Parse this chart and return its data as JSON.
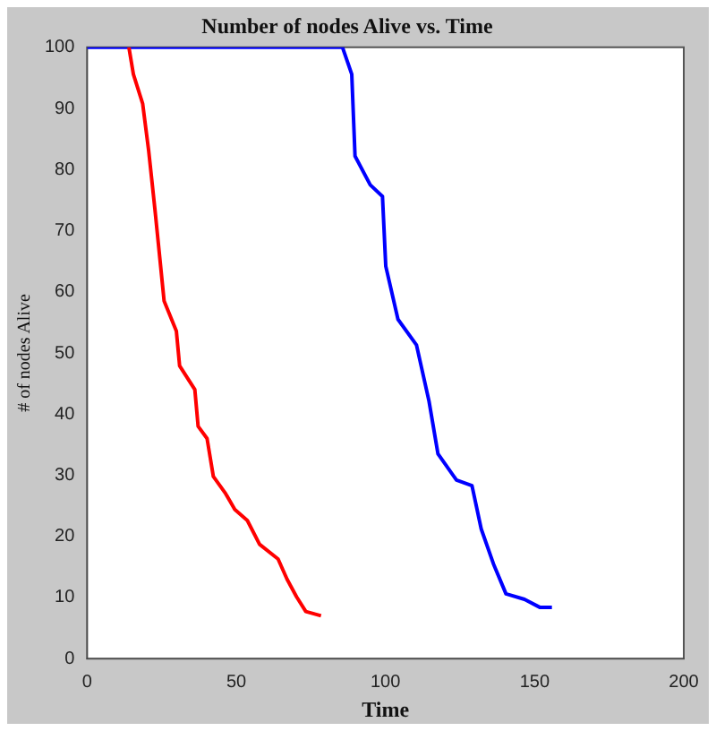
{
  "chart_data": {
    "type": "line",
    "title": "Number of nodes Alive vs. Time",
    "xlabel": "Time",
    "ylabel": "# of nodes Alive",
    "xlim": [
      0,
      200
    ],
    "xticks": [
      0,
      50,
      100,
      150,
      200
    ],
    "ylim": [
      0,
      100
    ],
    "yticks": [
      0,
      10,
      20,
      30,
      40,
      50,
      60,
      70,
      80,
      90,
      100
    ],
    "grid": false,
    "legend": false,
    "marker": "none",
    "line_style": "solid",
    "series": [
      {
        "color": "#ff0000",
        "x": [
          14,
          15.5,
          18.6,
          20.6,
          22.7,
          25.8,
          29.9,
          31,
          36.1,
          37.2,
          40.2,
          42.3,
          46.4,
          49.5,
          53.7,
          57.8,
          64,
          67,
          70.2,
          73.3,
          78.4
        ],
        "values": [
          100,
          95.6,
          90.8,
          83.2,
          73.6,
          58.5,
          53.6,
          47.9,
          44,
          38,
          36,
          29.8,
          27,
          24.4,
          22.6,
          18.7,
          16.3,
          13,
          10.1,
          7.7,
          7
        ]
      },
      {
        "color": "#0000ff",
        "x": [
          0,
          85.6,
          88.7,
          89.8,
          94.9,
          99,
          100.1,
          104.2,
          110.4,
          114.6,
          117.6,
          123.8,
          129,
          132.1,
          136.2,
          140.4,
          146.6,
          151.7,
          155.8
        ],
        "values": [
          100,
          100,
          95.6,
          82.2,
          77.5,
          75.6,
          64.2,
          55.5,
          51.3,
          42.1,
          33.5,
          29.2,
          28.3,
          21.2,
          15.5,
          10.6,
          9.7,
          8.4,
          8.4
        ]
      }
    ]
  }
}
